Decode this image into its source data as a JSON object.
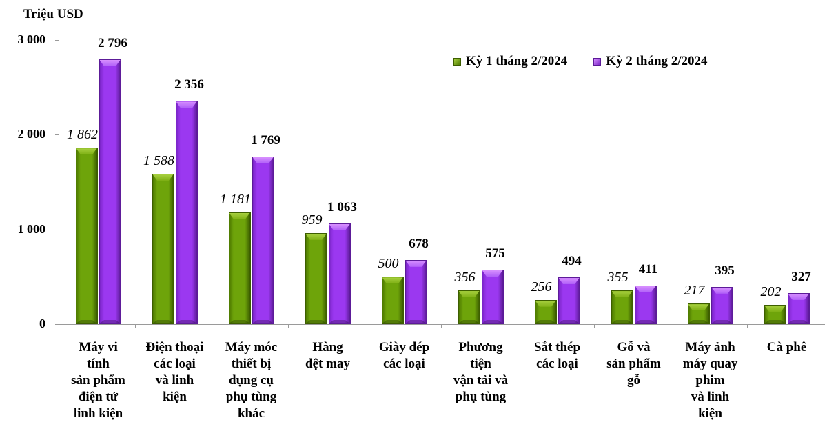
{
  "chart_data": {
    "type": "bar",
    "title": "",
    "ylabel": "Triệu USD",
    "xlabel": "",
    "ylim": [
      0,
      3000
    ],
    "yticks": [
      0,
      1000,
      2000,
      3000
    ],
    "ytick_labels": [
      "0",
      "1 000",
      "2 000",
      "3 000"
    ],
    "grid": false,
    "legend_position": "top-right",
    "categories": [
      "Máy vi\ntính\nsản phẩm\nđiện tử\nlinh kiện",
      "Điện thoại\ncác loại\nvà linh\nkiện",
      "Máy móc\nthiết bị\ndụng cụ\nphụ tùng\nkhác",
      "Hàng\ndệt may",
      "Giày dép\ncác loại",
      "Phương\ntiện\nvận tải và\nphụ tùng",
      "Sắt thép\ncác loại",
      "Gỗ và\nsản phẩm\ngỗ",
      "Máy ảnh\nmáy quay\nphim\nvà linh\nkiện",
      "Cà phê"
    ],
    "series": [
      {
        "name": "Kỳ 1 tháng 2/2024",
        "color": "#6ea40a",
        "values": [
          1862,
          1588,
          1181,
          959,
          500,
          356,
          256,
          355,
          217,
          202
        ],
        "labels": [
          "1 862",
          "1 588",
          "1 181",
          "959",
          "500",
          "356",
          "256",
          "355",
          "217",
          "202"
        ]
      },
      {
        "name": "Kỳ 2 tháng 2/2024",
        "color": "#9b38f0",
        "values": [
          2796,
          2356,
          1769,
          1063,
          678,
          575,
          494,
          411,
          395,
          327
        ],
        "labels": [
          "2 796",
          "2 356",
          "1 769",
          "1 063",
          "678",
          "575",
          "494",
          "411",
          "395",
          "327"
        ]
      }
    ]
  }
}
